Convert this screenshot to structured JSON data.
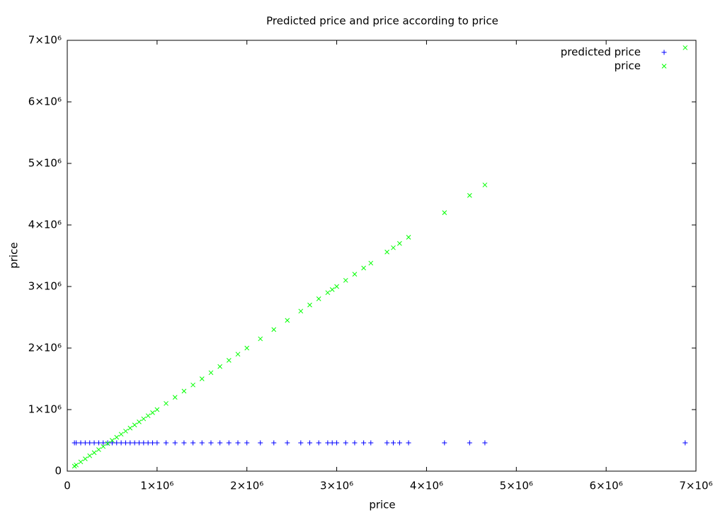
{
  "chart_data": {
    "type": "scatter",
    "title": "Predicted price and price according to price",
    "x_label": "price",
    "y_label": "price",
    "x": [
      80000,
      100000,
      150000,
      200000,
      250000,
      300000,
      350000,
      400000,
      450000,
      500000,
      550000,
      600000,
      650000,
      700000,
      750000,
      800000,
      850000,
      900000,
      950000,
      1000000,
      1100000,
      1200000,
      1300000,
      1400000,
      1500000,
      1600000,
      1700000,
      1800000,
      1900000,
      2000000,
      2150000,
      2300000,
      2450000,
      2600000,
      2700000,
      2800000,
      2900000,
      2950000,
      3000000,
      3100000,
      3200000,
      3300000,
      3380000,
      3560000,
      3630000,
      3700000,
      3800000,
      4200000,
      4480000,
      4650000,
      6880000
    ],
    "series": [
      {
        "name": "predicted price",
        "color": "#0000ff",
        "marker": "plus",
        "values": [
          460000,
          460000,
          460000,
          460000,
          460000,
          460000,
          460000,
          460000,
          460000,
          460000,
          460000,
          460000,
          460000,
          460000,
          460000,
          460000,
          460000,
          460000,
          460000,
          460000,
          460000,
          460000,
          460000,
          460000,
          460000,
          460000,
          460000,
          460000,
          460000,
          460000,
          460000,
          460000,
          460000,
          460000,
          460000,
          460000,
          460000,
          460000,
          460000,
          460000,
          460000,
          460000,
          460000,
          460000,
          460000,
          460000,
          460000,
          460000,
          460000,
          460000,
          460000
        ]
      },
      {
        "name": "price",
        "color": "#00ff00",
        "marker": "cross",
        "values": [
          80000,
          100000,
          150000,
          200000,
          250000,
          300000,
          350000,
          400000,
          450000,
          500000,
          550000,
          600000,
          650000,
          700000,
          750000,
          800000,
          850000,
          900000,
          950000,
          1000000,
          1100000,
          1200000,
          1300000,
          1400000,
          1500000,
          1600000,
          1700000,
          1800000,
          1900000,
          2000000,
          2150000,
          2300000,
          2450000,
          2600000,
          2700000,
          2800000,
          2900000,
          2950000,
          3000000,
          3100000,
          3200000,
          3300000,
          3380000,
          3560000,
          3630000,
          3700000,
          3800000,
          4200000,
          4480000,
          4650000,
          6880000
        ]
      }
    ],
    "xlim": [
      0,
      7000000
    ],
    "ylim": [
      0,
      7000000
    ],
    "xticks": [
      0,
      {
        "value": 1000000,
        "label": "1×10⁶"
      },
      {
        "value": 2000000,
        "label": "2×10⁶"
      },
      {
        "value": 3000000,
        "label": "3×10⁶"
      },
      {
        "value": 4000000,
        "label": "4×10⁶"
      },
      {
        "value": 5000000,
        "label": "5×10⁶"
      },
      {
        "value": 6000000,
        "label": "6×10⁶"
      },
      {
        "value": 7000000,
        "label": "7×10⁶"
      }
    ],
    "yticks": [
      0,
      {
        "value": 1000000,
        "label": "1×10⁶"
      },
      {
        "value": 2000000,
        "label": "2×10⁶"
      },
      {
        "value": 3000000,
        "label": "3×10⁶"
      },
      {
        "value": 4000000,
        "label": "4×10⁶"
      },
      {
        "value": 5000000,
        "label": "5×10⁶"
      },
      {
        "value": 6000000,
        "label": "6×10⁶"
      },
      {
        "value": 7000000,
        "label": "7×10⁶"
      }
    ],
    "legend": "top-right"
  }
}
